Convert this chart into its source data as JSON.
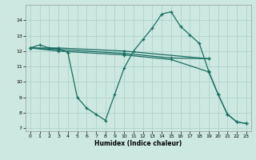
{
  "xlabel": "Humidex (Indice chaleur)",
  "xlim": [
    -0.5,
    23.5
  ],
  "ylim": [
    6.8,
    15.0
  ],
  "yticks": [
    7,
    8,
    9,
    10,
    11,
    12,
    13,
    14
  ],
  "xticks": [
    0,
    1,
    2,
    3,
    4,
    5,
    6,
    7,
    8,
    9,
    10,
    11,
    12,
    13,
    14,
    15,
    16,
    17,
    18,
    19,
    20,
    21,
    22,
    23
  ],
  "bg_color": "#cce8e0",
  "grid_color": "#aacfc8",
  "line_color": "#1a6e62",
  "s1x": [
    0,
    1,
    2,
    3,
    4,
    5,
    6,
    7,
    8,
    9,
    10,
    11,
    12,
    13,
    14,
    15,
    16,
    17,
    18,
    19,
    20,
    21,
    22,
    23
  ],
  "s1y": [
    12.2,
    12.4,
    12.2,
    12.15,
    11.9,
    9.0,
    8.3,
    7.9,
    7.5,
    9.2,
    10.9,
    12.0,
    12.75,
    13.5,
    14.4,
    14.55,
    13.6,
    13.05,
    12.5,
    10.7,
    9.2,
    7.9,
    7.4,
    7.3
  ],
  "s2x": [
    0,
    3,
    10,
    19
  ],
  "s2y": [
    12.2,
    12.2,
    12.0,
    11.5
  ],
  "s3x": [
    0,
    3,
    10,
    15,
    19
  ],
  "s3y": [
    12.2,
    12.1,
    11.85,
    11.55,
    11.5
  ],
  "s4x": [
    0,
    3,
    10,
    15,
    19,
    20,
    21,
    22,
    23
  ],
  "s4y": [
    12.2,
    12.0,
    11.75,
    11.45,
    10.65,
    9.2,
    7.9,
    7.4,
    7.3
  ]
}
